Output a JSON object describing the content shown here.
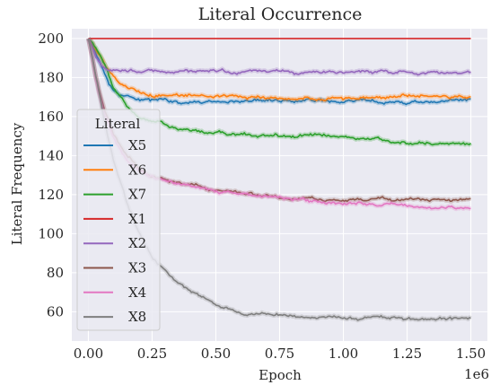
{
  "chart_data": {
    "type": "line",
    "title": "Literal Occurrence",
    "xlabel": "Epoch",
    "ylabel": "Literal Frequency",
    "x_offset_label": "1e6",
    "xlim": [
      -0.065,
      1.565
    ],
    "ylim": [
      45,
      205
    ],
    "xticks": [
      0.0,
      0.25,
      0.5,
      0.75,
      1.0,
      1.25,
      1.5
    ],
    "xtick_labels": [
      "0.00",
      "0.25",
      "0.50",
      "0.75",
      "1.00",
      "1.25",
      "1.50"
    ],
    "yticks": [
      60,
      80,
      100,
      120,
      140,
      160,
      180,
      200
    ],
    "ytick_labels": [
      "60",
      "80",
      "100",
      "120",
      "140",
      "160",
      "180",
      "200"
    ],
    "grid": true,
    "background": "#eaeaf2",
    "legend_title": "Literal",
    "legend_position": "center-left",
    "series": [
      {
        "name": "X5",
        "color": "#1f77b4",
        "x": [
          0,
          0.02,
          0.05,
          0.08,
          0.12,
          0.18,
          0.25,
          0.35,
          0.5,
          0.75,
          1.0,
          1.25,
          1.5
        ],
        "y": [
          200,
          196,
          186,
          176,
          171,
          169,
          168,
          168,
          168,
          168,
          168,
          168,
          168
        ]
      },
      {
        "name": "X6",
        "color": "#ff7f0e",
        "x": [
          0,
          0.02,
          0.05,
          0.08,
          0.12,
          0.18,
          0.25,
          0.35,
          0.5,
          0.75,
          1.0,
          1.2,
          1.5
        ],
        "y": [
          200,
          197,
          190,
          183,
          177,
          173,
          171,
          171,
          170,
          170,
          169,
          170,
          170
        ]
      },
      {
        "name": "X7",
        "color": "#2ca02c",
        "x": [
          0,
          0.03,
          0.07,
          0.1,
          0.15,
          0.2,
          0.25,
          0.35,
          0.5,
          0.75,
          1.0,
          1.2,
          1.5
        ],
        "y": [
          200,
          196,
          186,
          176,
          166,
          160,
          157,
          154,
          152,
          150,
          149,
          147,
          146
        ]
      },
      {
        "name": "X1",
        "color": "#d62728",
        "x": [
          0,
          0.25,
          0.5,
          0.75,
          1.0,
          1.25,
          1.5
        ],
        "y": [
          200,
          200,
          200,
          200,
          200,
          200,
          200
        ]
      },
      {
        "name": "X2",
        "color": "#9467bd",
        "x": [
          0,
          0.03,
          0.06,
          0.1,
          0.15,
          0.25,
          0.5,
          0.75,
          1.0,
          1.25,
          1.5
        ],
        "y": [
          200,
          191,
          185,
          183,
          183,
          183,
          183,
          183,
          183,
          183,
          183
        ]
      },
      {
        "name": "X3",
        "color": "#8c564b",
        "x": [
          0,
          0.03,
          0.06,
          0.1,
          0.15,
          0.2,
          0.25,
          0.35,
          0.5,
          0.75,
          1.0,
          1.25,
          1.5
        ],
        "y": [
          200,
          181,
          165,
          151,
          140,
          134,
          130,
          126,
          122,
          119,
          117,
          117,
          117
        ]
      },
      {
        "name": "X4",
        "color": "#e377c2",
        "x": [
          0,
          0.03,
          0.06,
          0.1,
          0.15,
          0.2,
          0.25,
          0.35,
          0.5,
          0.75,
          1.0,
          1.25,
          1.5
        ],
        "y": [
          200,
          180,
          163,
          149,
          138,
          133,
          129,
          125,
          121,
          118,
          115,
          114,
          113
        ]
      },
      {
        "name": "X8",
        "color": "#7f7f7f",
        "x": [
          0,
          0.03,
          0.06,
          0.1,
          0.15,
          0.2,
          0.25,
          0.35,
          0.5,
          0.6,
          0.75,
          1.0,
          1.25,
          1.5
        ],
        "y": [
          200,
          181,
          160,
          138,
          116,
          100,
          88,
          74,
          64,
          60,
          58,
          57,
          56,
          56
        ]
      }
    ]
  }
}
